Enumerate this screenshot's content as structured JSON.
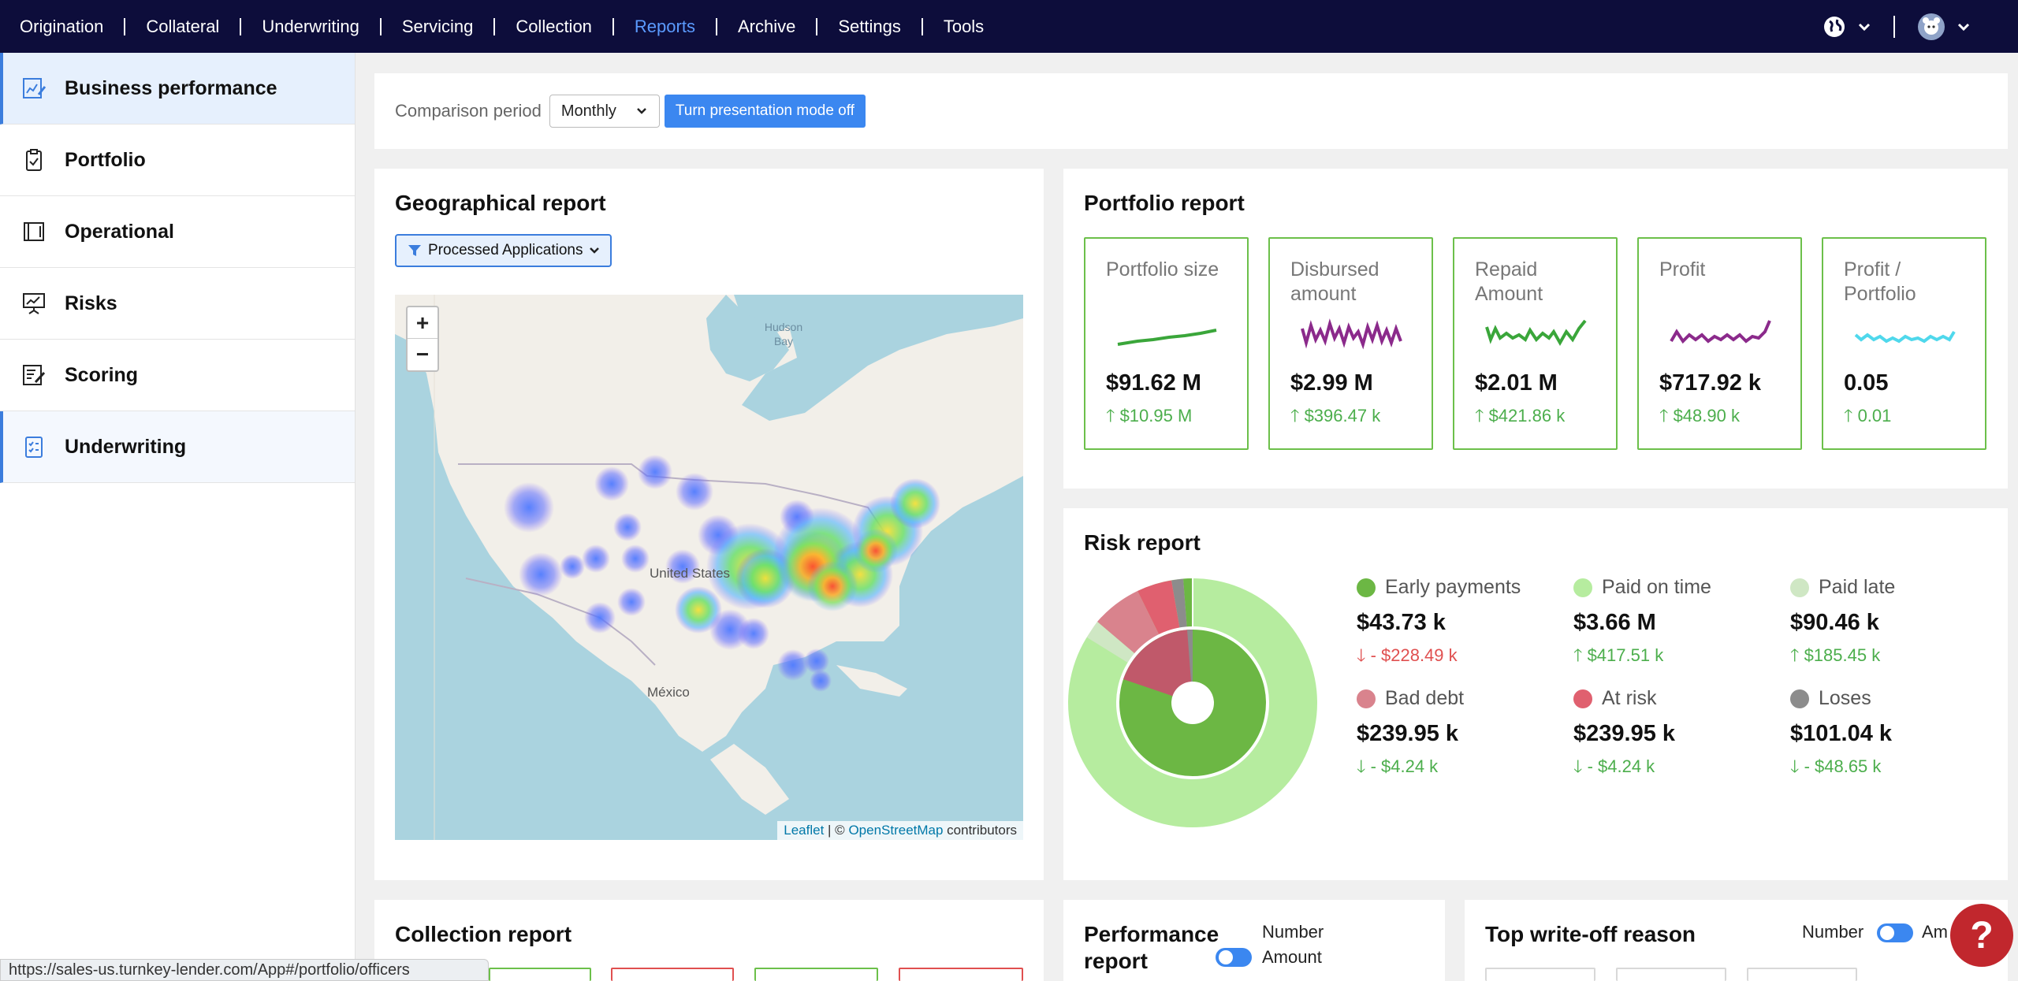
{
  "nav": {
    "items": [
      {
        "label": "Origination"
      },
      {
        "label": "Collateral"
      },
      {
        "label": "Underwriting"
      },
      {
        "label": "Servicing"
      },
      {
        "label": "Collection"
      },
      {
        "label": "Reports",
        "active": true
      },
      {
        "label": "Archive"
      },
      {
        "label": "Settings"
      },
      {
        "label": "Tools"
      }
    ],
    "icons": [
      "globe-icon",
      "chevron-down-icon",
      "avatar"
    ]
  },
  "sidebar": {
    "items": [
      {
        "label": "Business performance",
        "icon": "chart-edit-icon"
      },
      {
        "label": "Portfolio",
        "icon": "clipboard-icon"
      },
      {
        "label": "Operational",
        "icon": "book-icon"
      },
      {
        "label": "Risks",
        "icon": "presentation-icon"
      },
      {
        "label": "Scoring",
        "icon": "edit-list-icon"
      },
      {
        "label": "Underwriting",
        "icon": "checklist-icon"
      }
    ]
  },
  "period": {
    "label": "Comparison period",
    "value": "Monthly",
    "button": "Turn presentation mode off"
  },
  "geo": {
    "title": "Geographical report",
    "filter": "Processed Applications",
    "zoom_in": "+",
    "zoom_out": "−",
    "map_labels": {
      "hudson": "Hudson Bay",
      "us": "United States",
      "mexico": "México"
    },
    "attrib_leaflet": "Leaflet",
    "attrib_sep": " | © ",
    "attrib_osm": "OpenStreetMap",
    "attrib_tail": " contributors"
  },
  "portfolio": {
    "title": "Portfolio report",
    "kpis": [
      {
        "title": "Portfolio size",
        "value": "$91.62 M",
        "delta": "$10.95 M",
        "spark_color": "#3aa63a"
      },
      {
        "title": "Disbursed amount",
        "value": "$2.99 M",
        "delta": "$396.47 k",
        "spark_color": "#8b2a8b"
      },
      {
        "title": "Repaid Amount",
        "value": "$2.01 M",
        "delta": "$421.86 k",
        "spark_color": "#3aa63a"
      },
      {
        "title": "Profit",
        "value": "$717.92 k",
        "delta": "$48.90 k",
        "spark_color": "#8b2a8b"
      },
      {
        "title": "Profit / Portfolio",
        "value": "0.05",
        "delta": "0.01",
        "spark_color": "#4fd8ec"
      }
    ]
  },
  "risk": {
    "title": "Risk report",
    "legend": [
      {
        "name": "Early payments",
        "value": "$43.73 k",
        "delta": "- $228.49 k",
        "dir": "down",
        "delta_color": "#e05050",
        "color": "#6cb744"
      },
      {
        "name": "Paid on time",
        "value": "$3.66 M",
        "delta": "$417.51 k",
        "dir": "up",
        "delta_color": "#4cae4c",
        "color": "#b6ec9f"
      },
      {
        "name": "Paid late",
        "value": "$90.46 k",
        "delta": "$185.45 k",
        "dir": "up",
        "delta_color": "#4cae4c",
        "color": "#cfe7c4"
      },
      {
        "name": "Bad debt",
        "value": "$239.95 k",
        "delta": "- $4.24 k",
        "dir": "down",
        "delta_color": "#4cae4c",
        "color": "#d9838d"
      },
      {
        "name": "At risk",
        "value": "$239.95 k",
        "delta": "- $4.24 k",
        "dir": "down",
        "delta_color": "#4cae4c",
        "color": "#e0606f"
      },
      {
        "name": "Loses",
        "value": "$101.04 k",
        "delta": "- $48.65 k",
        "dir": "down",
        "delta_color": "#4cae4c",
        "color": "#8c8c8c"
      }
    ]
  },
  "collection": {
    "title": "Collection report"
  },
  "performance": {
    "title_line1": "Performance",
    "title_line2": "report",
    "opt1": "Number",
    "opt2": "Amount"
  },
  "writeoff": {
    "title": "Top write-off reason",
    "opt1": "Number",
    "opt2": "Am"
  },
  "status_url": "https://sales-us.turnkey-lender.com/App#/portfolio/officers",
  "help": "?"
}
